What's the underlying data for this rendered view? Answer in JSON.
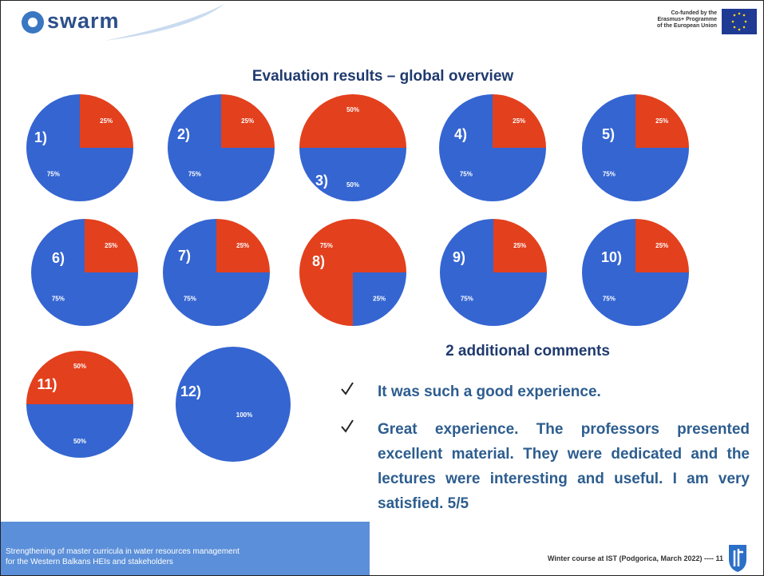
{
  "header": {
    "logo": "swarm",
    "cofunded": [
      "Co-funded by the",
      "Erasmus+ Programme",
      "of the European Union"
    ]
  },
  "title": "Evaluation results – global overview",
  "chart_data": [
    {
      "type": "pie",
      "title": "1)",
      "values": [
        25,
        75
      ],
      "value_labels": [
        "25%",
        "75%"
      ],
      "colors": [
        "#e3401d",
        "#3565d1"
      ]
    },
    {
      "type": "pie",
      "title": "2)",
      "values": [
        25,
        75
      ],
      "value_labels": [
        "25%",
        "75%"
      ],
      "colors": [
        "#e3401d",
        "#3565d1"
      ]
    },
    {
      "type": "pie",
      "title": "3)",
      "values": [
        50,
        50
      ],
      "value_labels": [
        "50%",
        "50%"
      ],
      "colors": [
        "#e3401d",
        "#3565d1"
      ]
    },
    {
      "type": "pie",
      "title": "4)",
      "values": [
        25,
        75
      ],
      "value_labels": [
        "25%",
        "75%"
      ],
      "colors": [
        "#e3401d",
        "#3565d1"
      ]
    },
    {
      "type": "pie",
      "title": "5)",
      "values": [
        25,
        75
      ],
      "value_labels": [
        "25%",
        "75%"
      ],
      "colors": [
        "#e3401d",
        "#3565d1"
      ]
    },
    {
      "type": "pie",
      "title": "6)",
      "values": [
        25,
        75
      ],
      "value_labels": [
        "25%",
        "75%"
      ],
      "colors": [
        "#e3401d",
        "#3565d1"
      ]
    },
    {
      "type": "pie",
      "title": "7)",
      "values": [
        25,
        75
      ],
      "value_labels": [
        "25%",
        "75%"
      ],
      "colors": [
        "#e3401d",
        "#3565d1"
      ]
    },
    {
      "type": "pie",
      "title": "8)",
      "values": [
        75,
        25
      ],
      "value_labels": [
        "75%",
        "25%"
      ],
      "colors": [
        "#e3401d",
        "#3565d1"
      ]
    },
    {
      "type": "pie",
      "title": "9)",
      "values": [
        25,
        75
      ],
      "value_labels": [
        "25%",
        "75%"
      ],
      "colors": [
        "#e3401d",
        "#3565d1"
      ]
    },
    {
      "type": "pie",
      "title": "10)",
      "values": [
        25,
        75
      ],
      "value_labels": [
        "25%",
        "75%"
      ],
      "colors": [
        "#e3401d",
        "#3565d1"
      ]
    },
    {
      "type": "pie",
      "title": "11)",
      "values": [
        50,
        50
      ],
      "value_labels": [
        "50%",
        "50%"
      ],
      "colors": [
        "#e3401d",
        "#3565d1"
      ]
    },
    {
      "type": "pie",
      "title": "12)",
      "values": [
        100
      ],
      "value_labels": [
        "100%"
      ],
      "colors": [
        "#3565d1"
      ]
    }
  ],
  "comments": {
    "heading": "2 additional comments",
    "items": [
      "It was such a good experience.",
      "Great experience. The professors presented excellent material. They were dedicated and the lectures were interesting and useful. I am very satisfied. 5/5"
    ]
  },
  "footer": {
    "project": [
      "Strengthening of master curricula in water resources  management",
      "for the Western Balkans HEIs and stakeholders"
    ],
    "course": "Winter course at IST (Podgorica, March 2022) ---- 11"
  }
}
